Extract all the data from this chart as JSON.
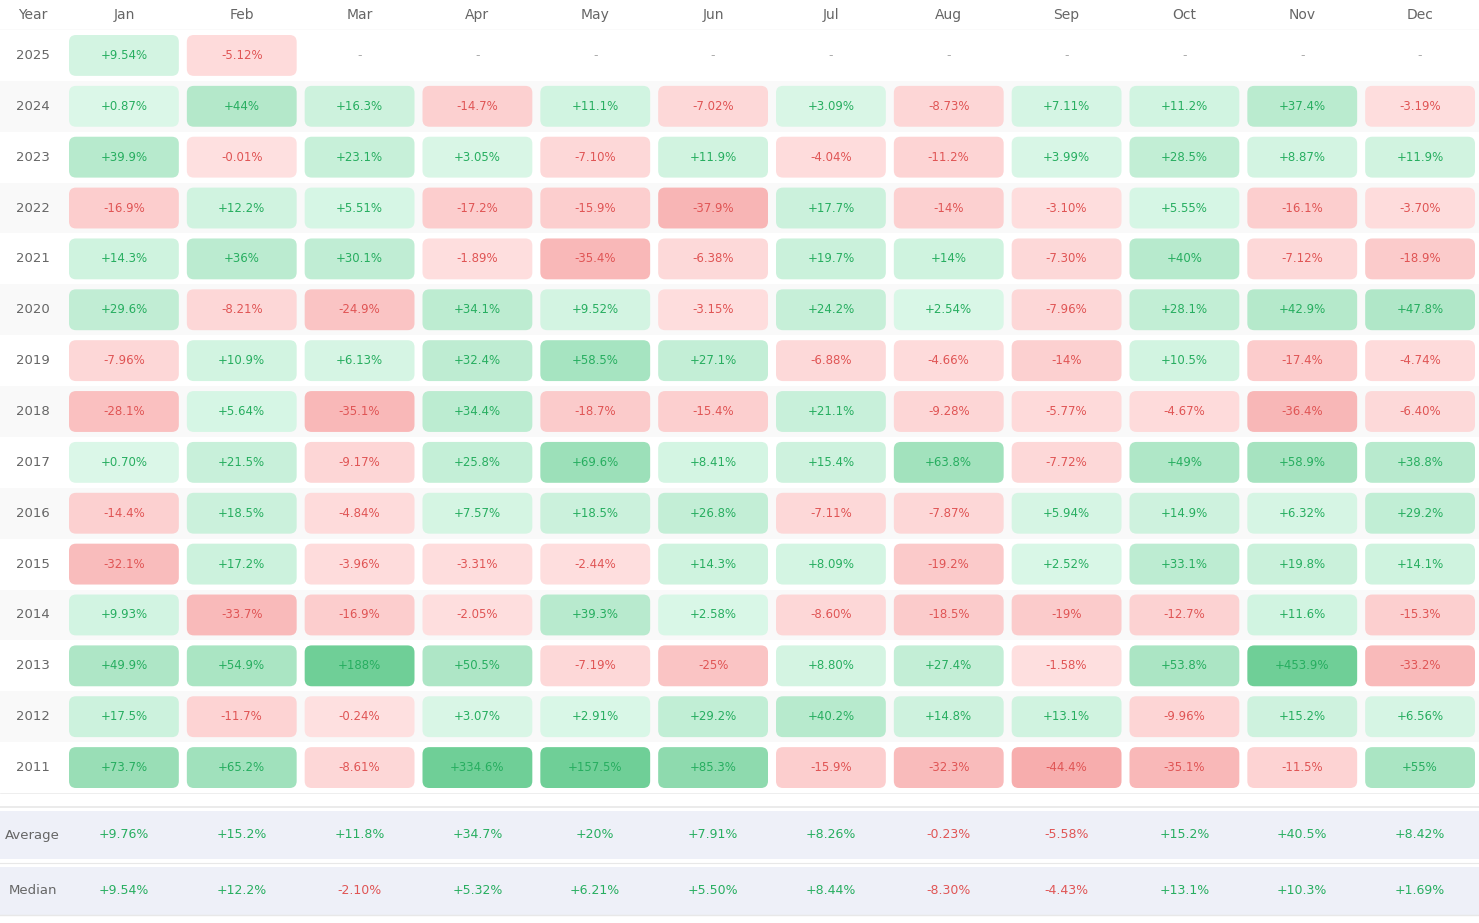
{
  "months": [
    "Jan",
    "Feb",
    "Mar",
    "Apr",
    "May",
    "Jun",
    "Jul",
    "Aug",
    "Sep",
    "Oct",
    "Nov",
    "Dec"
  ],
  "years": [
    2025,
    2024,
    2023,
    2022,
    2021,
    2020,
    2019,
    2018,
    2017,
    2016,
    2015,
    2014,
    2013,
    2012,
    2011
  ],
  "data": {
    "2025": [
      9.54,
      -5.12,
      null,
      null,
      null,
      null,
      null,
      null,
      null,
      null,
      null,
      null
    ],
    "2024": [
      0.87,
      44.0,
      16.3,
      -14.7,
      11.1,
      -7.02,
      3.09,
      -8.73,
      7.11,
      11.2,
      37.4,
      -3.19
    ],
    "2023": [
      39.9,
      -0.01,
      23.1,
      3.05,
      -7.1,
      11.9,
      -4.04,
      -11.2,
      3.99,
      28.5,
      8.87,
      11.9
    ],
    "2022": [
      -16.9,
      12.2,
      5.51,
      -17.2,
      -15.9,
      -37.9,
      17.7,
      -14.0,
      -3.1,
      5.55,
      -16.1,
      -3.7
    ],
    "2021": [
      14.3,
      36.0,
      30.1,
      -1.89,
      -35.4,
      -6.38,
      19.7,
      14.0,
      -7.3,
      40.0,
      -7.12,
      -18.9
    ],
    "2020": [
      29.6,
      -8.21,
      -24.9,
      34.1,
      9.52,
      -3.15,
      24.2,
      2.54,
      -7.96,
      28.1,
      42.9,
      47.8
    ],
    "2019": [
      -7.96,
      10.9,
      6.13,
      32.4,
      58.5,
      27.1,
      -6.88,
      -4.66,
      -14.0,
      10.5,
      -17.4,
      -4.74
    ],
    "2018": [
      -28.1,
      5.64,
      -35.1,
      34.4,
      -18.7,
      -15.4,
      21.1,
      -9.28,
      -5.77,
      -4.67,
      -36.4,
      -6.4
    ],
    "2017": [
      0.7,
      21.5,
      -9.17,
      25.8,
      69.6,
      8.41,
      15.4,
      63.8,
      -7.72,
      49.0,
      58.9,
      38.8
    ],
    "2016": [
      -14.4,
      18.5,
      -4.84,
      7.57,
      18.5,
      26.8,
      -7.11,
      -7.87,
      5.94,
      14.9,
      6.32,
      29.2
    ],
    "2015": [
      -32.1,
      17.2,
      -3.96,
      -3.31,
      -2.44,
      14.3,
      8.09,
      -19.2,
      2.52,
      33.1,
      19.8,
      14.1
    ],
    "2014": [
      9.93,
      -33.7,
      -16.9,
      -2.05,
      39.3,
      2.58,
      -8.6,
      -18.5,
      -19.0,
      -12.7,
      11.6,
      -15.3
    ],
    "2013": [
      49.9,
      54.9,
      188.0,
      50.5,
      -7.19,
      -25.0,
      8.8,
      27.4,
      -1.58,
      53.8,
      453.9,
      -33.2
    ],
    "2012": [
      17.5,
      -11.7,
      -0.24,
      3.07,
      2.91,
      29.2,
      40.2,
      14.8,
      13.1,
      -9.96,
      15.2,
      6.56
    ],
    "2011": [
      73.7,
      65.2,
      -8.61,
      334.6,
      157.5,
      85.3,
      -15.9,
      -32.3,
      -44.4,
      -35.1,
      -11.5,
      55.0
    ]
  },
  "display": {
    "2025": [
      "+9.54%",
      "-5.12%",
      "-",
      "-",
      "-",
      "-",
      "-",
      "-",
      "-",
      "-",
      "-",
      "-"
    ],
    "2024": [
      "+0.87%",
      "+44%",
      "+16.3%",
      "-14.7%",
      "+11.1%",
      "-7.02%",
      "+3.09%",
      "-8.73%",
      "+7.11%",
      "+11.2%",
      "+37.4%",
      "-3.19%"
    ],
    "2023": [
      "+39.9%",
      "-0.01%",
      "+23.1%",
      "+3.05%",
      "-7.10%",
      "+11.9%",
      "-4.04%",
      "-11.2%",
      "+3.99%",
      "+28.5%",
      "+8.87%",
      "+11.9%"
    ],
    "2022": [
      "-16.9%",
      "+12.2%",
      "+5.51%",
      "-17.2%",
      "-15.9%",
      "-37.9%",
      "+17.7%",
      "-14%",
      "-3.10%",
      "+5.55%",
      "-16.1%",
      "-3.70%"
    ],
    "2021": [
      "+14.3%",
      "+36%",
      "+30.1%",
      "-1.89%",
      "-35.4%",
      "-6.38%",
      "+19.7%",
      "+14%",
      "-7.30%",
      "+40%",
      "-7.12%",
      "-18.9%"
    ],
    "2020": [
      "+29.6%",
      "-8.21%",
      "-24.9%",
      "+34.1%",
      "+9.52%",
      "-3.15%",
      "+24.2%",
      "+2.54%",
      "-7.96%",
      "+28.1%",
      "+42.9%",
      "+47.8%"
    ],
    "2019": [
      "-7.96%",
      "+10.9%",
      "+6.13%",
      "+32.4%",
      "+58.5%",
      "+27.1%",
      "-6.88%",
      "-4.66%",
      "-14%",
      "+10.5%",
      "-17.4%",
      "-4.74%"
    ],
    "2018": [
      "-28.1%",
      "+5.64%",
      "-35.1%",
      "+34.4%",
      "-18.7%",
      "-15.4%",
      "+21.1%",
      "-9.28%",
      "-5.77%",
      "-4.67%",
      "-36.4%",
      "-6.40%"
    ],
    "2017": [
      "+0.70%",
      "+21.5%",
      "-9.17%",
      "+25.8%",
      "+69.6%",
      "+8.41%",
      "+15.4%",
      "+63.8%",
      "-7.72%",
      "+49%",
      "+58.9%",
      "+38.8%"
    ],
    "2016": [
      "-14.4%",
      "+18.5%",
      "-4.84%",
      "+7.57%",
      "+18.5%",
      "+26.8%",
      "-7.11%",
      "-7.87%",
      "+5.94%",
      "+14.9%",
      "+6.32%",
      "+29.2%"
    ],
    "2015": [
      "-32.1%",
      "+17.2%",
      "-3.96%",
      "-3.31%",
      "-2.44%",
      "+14.3%",
      "+8.09%",
      "-19.2%",
      "+2.52%",
      "+33.1%",
      "+19.8%",
      "+14.1%"
    ],
    "2014": [
      "+9.93%",
      "-33.7%",
      "-16.9%",
      "-2.05%",
      "+39.3%",
      "+2.58%",
      "-8.60%",
      "-18.5%",
      "-19%",
      "-12.7%",
      "+11.6%",
      "-15.3%"
    ],
    "2013": [
      "+49.9%",
      "+54.9%",
      "+188%",
      "+50.5%",
      "-7.19%",
      "-25%",
      "+8.80%",
      "+27.4%",
      "-1.58%",
      "+53.8%",
      "+453.9%",
      "-33.2%"
    ],
    "2012": [
      "+17.5%",
      "-11.7%",
      "-0.24%",
      "+3.07%",
      "+2.91%",
      "+29.2%",
      "+40.2%",
      "+14.8%",
      "+13.1%",
      "-9.96%",
      "+15.2%",
      "+6.56%"
    ],
    "2011": [
      "+73.7%",
      "+65.2%",
      "-8.61%",
      "+334.6%",
      "+157.5%",
      "+85.3%",
      "-15.9%",
      "-32.3%",
      "-44.4%",
      "-35.1%",
      "-11.5%",
      "+55%"
    ]
  },
  "averages": [
    "+9.76%",
    "+15.2%",
    "+11.8%",
    "+34.7%",
    "+20%",
    "+7.91%",
    "+8.26%",
    "-0.23%",
    "-5.58%",
    "+15.2%",
    "+40.5%",
    "+8.42%"
  ],
  "medians": [
    "+9.54%",
    "+12.2%",
    "-2.10%",
    "+5.32%",
    "+6.21%",
    "+5.50%",
    "+8.44%",
    "-8.30%",
    "-4.43%",
    "+13.1%",
    "+10.3%",
    "+1.69%"
  ],
  "avg_vals": [
    9.76,
    15.2,
    11.8,
    34.7,
    20.0,
    7.91,
    8.26,
    -0.23,
    -5.58,
    15.2,
    40.5,
    8.42
  ],
  "med_vals": [
    9.54,
    12.2,
    -2.1,
    5.32,
    6.21,
    5.5,
    8.44,
    -8.3,
    -4.43,
    13.1,
    10.3,
    1.69
  ],
  "bg_color": "#ffffff",
  "pos_text": "#27ae60",
  "neg_text": "#e05555",
  "neutral_text": "#aaaaaa",
  "label_color": "#666666",
  "avg_med_bg": "#eef0f8",
  "sep_color": "#e8e8e8"
}
